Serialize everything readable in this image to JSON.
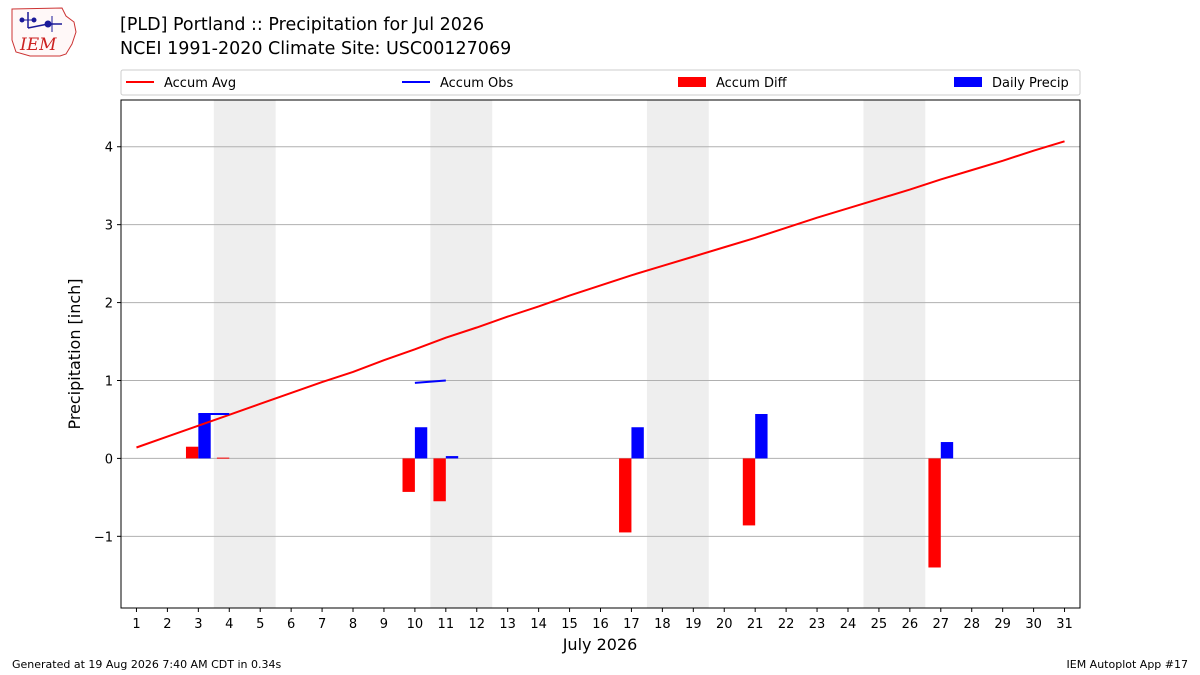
{
  "logo": {
    "text": "IEM"
  },
  "title": {
    "line1": "[PLD] Portland :: Precipitation for Jul 2026",
    "line2": "NCEI 1991-2020 Climate Site: USC00127069"
  },
  "footer": {
    "left": "Generated at 19 Aug 2026 7:40 AM CDT in 0.34s",
    "right": "IEM Autoplot App #17"
  },
  "chart_data": {
    "type": "bar",
    "xlabel": "July 2026",
    "ylabel": "Precipitation [inch]",
    "x": [
      1,
      2,
      3,
      4,
      5,
      6,
      7,
      8,
      9,
      10,
      11,
      12,
      13,
      14,
      15,
      16,
      17,
      18,
      19,
      20,
      21,
      22,
      23,
      24,
      25,
      26,
      27,
      28,
      29,
      30,
      31
    ],
    "xlim": [
      0.5,
      31.5
    ],
    "ylim": [
      -1.92,
      4.6
    ],
    "yticks": [
      -1,
      0,
      1,
      2,
      3,
      4
    ],
    "ytick_labels": [
      "−1",
      "0",
      "1",
      "2",
      "3",
      "4"
    ],
    "grid": "horizontal",
    "legend_placement": "top",
    "weekend_shading": [
      [
        3.5,
        5.5
      ],
      [
        10.5,
        12.5
      ],
      [
        17.5,
        19.5
      ],
      [
        24.5,
        26.5
      ]
    ],
    "series": [
      {
        "name": "Accum Avg",
        "kind": "line",
        "color": "#ff0000",
        "x": [
          1,
          2,
          3,
          4,
          5,
          6,
          7,
          8,
          9,
          10,
          11,
          12,
          13,
          14,
          15,
          16,
          17,
          18,
          19,
          20,
          21,
          22,
          23,
          24,
          25,
          26,
          27,
          28,
          29,
          30,
          31
        ],
        "values": [
          0.14,
          0.28,
          0.42,
          0.56,
          0.7,
          0.84,
          0.98,
          1.11,
          1.26,
          1.4,
          1.55,
          1.68,
          1.82,
          1.95,
          2.09,
          2.22,
          2.35,
          2.47,
          2.59,
          2.71,
          2.83,
          2.96,
          3.09,
          3.21,
          3.33,
          3.45,
          3.58,
          3.7,
          3.82,
          3.95,
          4.07
        ]
      },
      {
        "name": "Accum Obs",
        "kind": "line",
        "color": "#0000ff",
        "segments": [
          {
            "x": [
              3,
              4
            ],
            "values": [
              0.57,
              0.57
            ]
          },
          {
            "x": [
              10,
              11
            ],
            "values": [
              0.97,
              1.0
            ]
          }
        ]
      },
      {
        "name": "Accum Diff",
        "kind": "bar",
        "color": "#ff0000",
        "offset": -0.2,
        "x": [
          3,
          4,
          10,
          11,
          17,
          21,
          27
        ],
        "values": [
          0.15,
          0.01,
          -0.43,
          -0.55,
          -0.95,
          -0.86,
          -1.4
        ]
      },
      {
        "name": "Daily Precip",
        "kind": "bar",
        "color": "#0000ff",
        "offset": 0.2,
        "x": [
          3,
          10,
          11,
          17,
          21,
          27
        ],
        "values": [
          0.57,
          0.4,
          0.03,
          0.4,
          0.57,
          0.21
        ]
      }
    ]
  }
}
